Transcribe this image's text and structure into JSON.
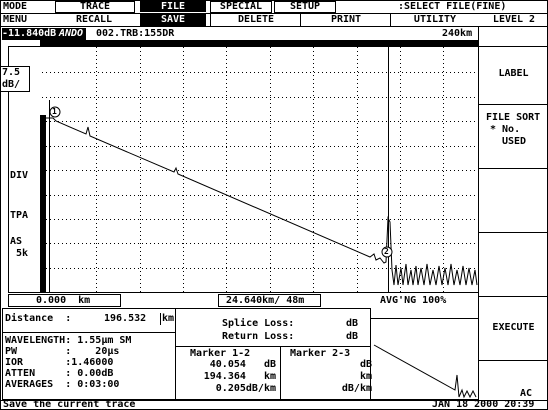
{
  "header": {
    "mode_label": "MODE",
    "menu_label": "MENU",
    "status": ":SELECT FILE(FINE)",
    "level": "LEVEL 2"
  },
  "tabs": [
    "TRACE",
    "FILE",
    "SPECIAL",
    "SETUP"
  ],
  "menu": [
    "RECALL",
    "SAVE",
    "DELETE",
    "PRINT",
    "UTILITY"
  ],
  "file_bar": {
    "level_db": "-11.840dB",
    "brand": "ANDO",
    "file": "002.TRB:155DR",
    "range": "240km"
  },
  "graph": {
    "scale": [
      "7.5",
      "dB/"
    ],
    "div": "DIV",
    "tpa": "TPA",
    "as": [
      "AS",
      "5k"
    ],
    "markers": [
      "1",
      "2"
    ],
    "start": "0.000  km",
    "span": "24.640km/ 48m",
    "avg": "AVG'NG 100%"
  },
  "softkeys": {
    "label": "LABEL",
    "file_sort": [
      "FILE SORT",
      "* No.",
      "USED"
    ],
    "execute": "EXECUTE",
    "ac": "AC"
  },
  "info": {
    "distance_label": "Distance  :",
    "distance_value": "196.532",
    "distance_unit": "km",
    "params": [
      "WAVELENGTH: 1.55µm SM",
      "PW        :    20µs",
      "IOR       :1.46000",
      "ATTEN     : 0.00dB",
      "AVERAGES  : 0:03:00"
    ]
  },
  "loss": {
    "splice": "Splice Loss:",
    "return": "Return Loss:",
    "units": [
      "dB",
      "dB"
    ]
  },
  "marker12": {
    "title": "Marker 1-2",
    "rows": [
      "40.054   dB",
      "194.364   km",
      "0.205dB/km"
    ]
  },
  "marker23": {
    "title": "Marker 2-3",
    "rows": [
      "dB",
      "km",
      "dB/km"
    ]
  },
  "status": {
    "message": "Save the current trace",
    "datetime": "JAN 18 2000 20:39"
  }
}
